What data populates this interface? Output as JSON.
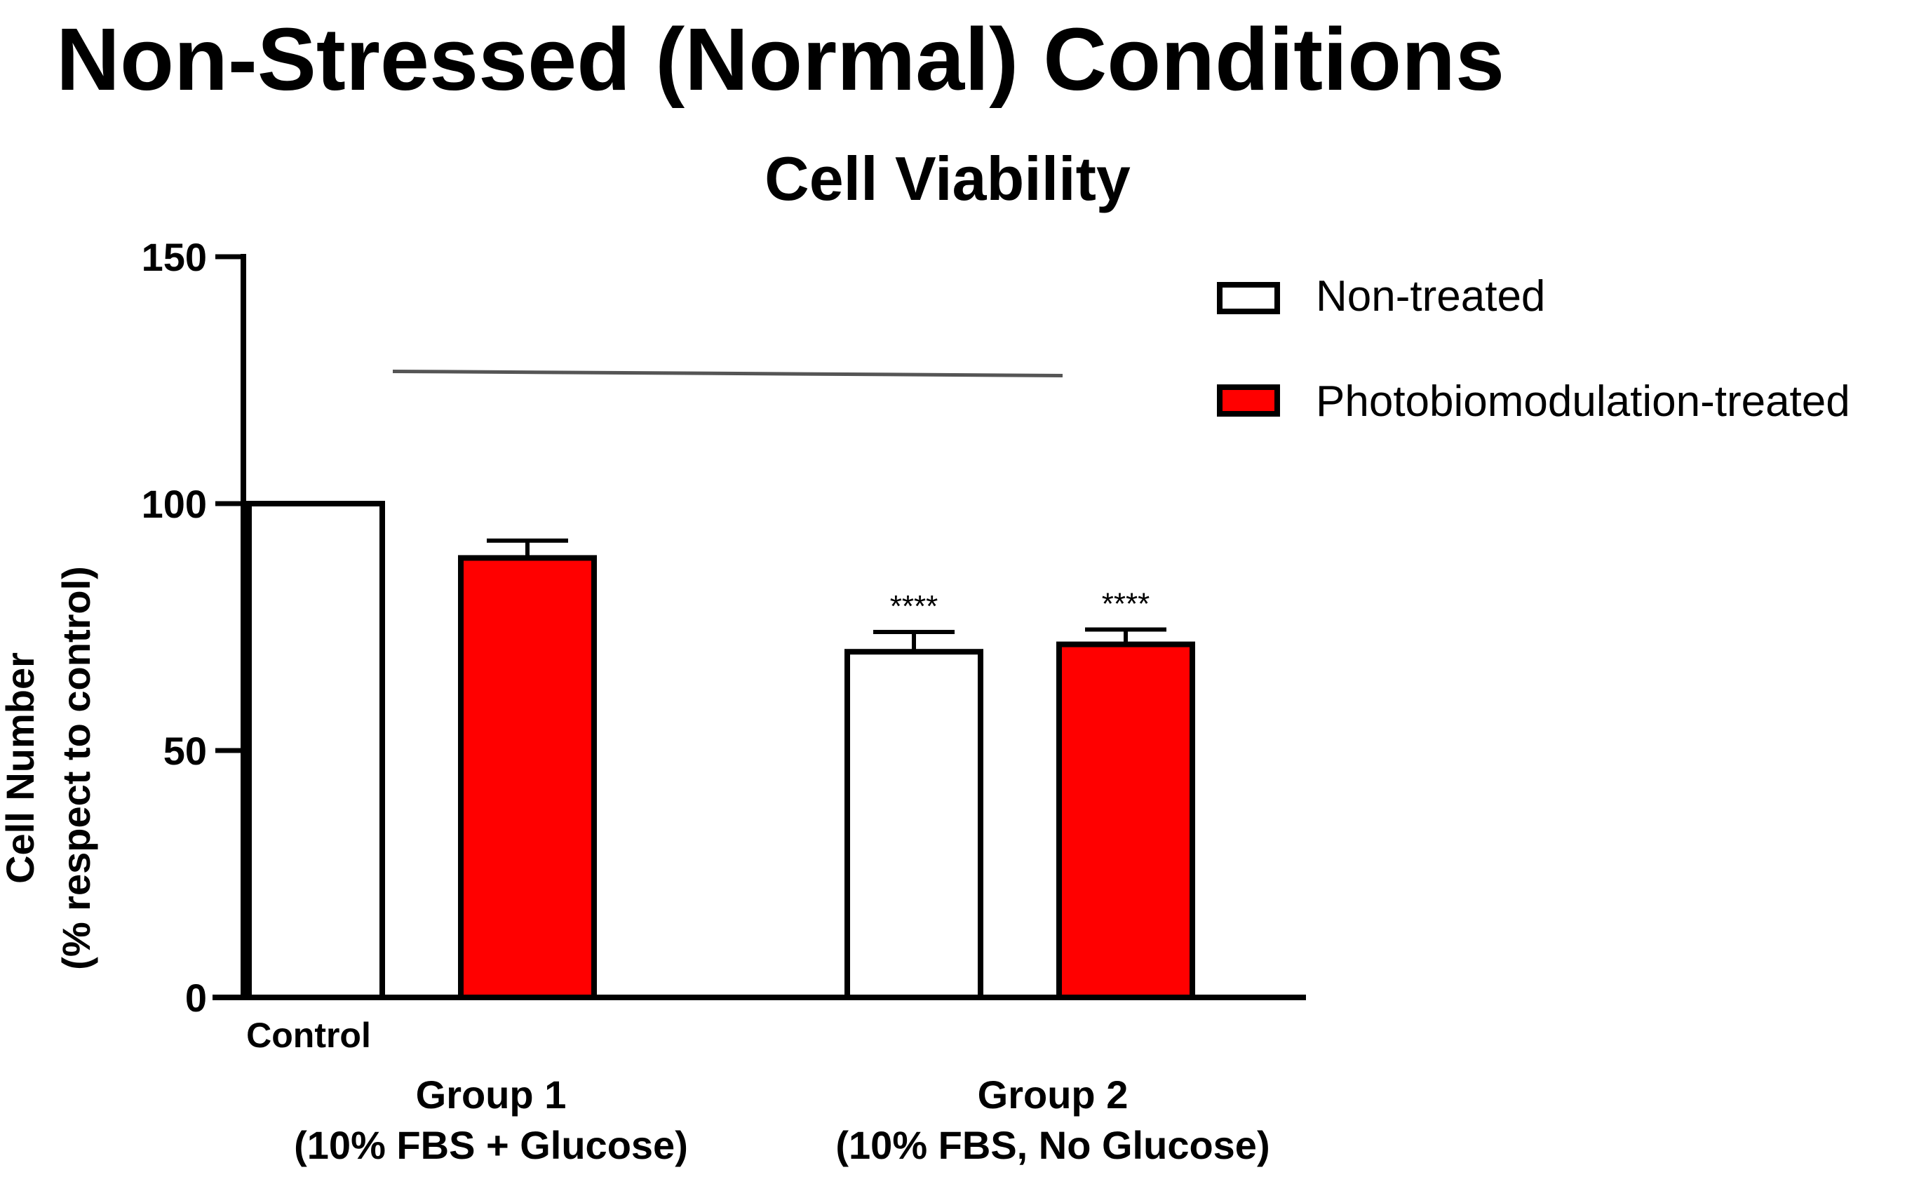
{
  "figure": {
    "title": "Non-Stressed (Normal) Conditions"
  },
  "chart_data": {
    "type": "bar",
    "title": "Cell Viability",
    "ylabel_line1": "Cell Number",
    "ylabel_line2": "(% respect to control)",
    "xlabel": "",
    "ylim": [
      0,
      150
    ],
    "yticks": [
      0,
      50,
      100,
      150
    ],
    "grid": false,
    "legend_position": "top-right",
    "groups": [
      {
        "label_line1": "Group 1",
        "label_line2": "(10% FBS + Glucose)",
        "bars": [
          {
            "series": "Non-treated",
            "value": 100,
            "error": 0,
            "sublabel": "Control",
            "significance": ""
          },
          {
            "series": "Photobiomodulation-treated",
            "value": 89,
            "error": 3.5,
            "sublabel": "",
            "significance": ""
          }
        ]
      },
      {
        "label_line1": "Group 2",
        "label_line2": "(10% FBS, No Glucose)",
        "bars": [
          {
            "series": "Non-treated",
            "value": 70,
            "error": 4,
            "sublabel": "",
            "significance": "****"
          },
          {
            "series": "Photobiomodulation-treated",
            "value": 71.5,
            "error": 3,
            "sublabel": "",
            "significance": "****"
          }
        ]
      }
    ],
    "series": [
      {
        "name": "Non-treated",
        "color": "#ffffff"
      },
      {
        "name": "Photobiomodulation-treated",
        "color": "#ff0000"
      }
    ],
    "comparison_line": {
      "from_group": 0,
      "to_group": 1,
      "y_value": 126.5
    },
    "colors": {
      "stroke": "#000000",
      "comparison": "#555555"
    }
  }
}
